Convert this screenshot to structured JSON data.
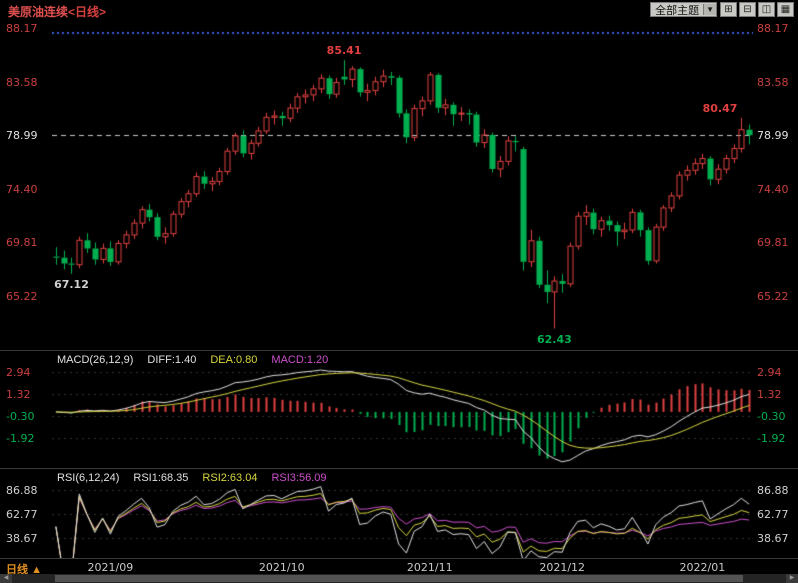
{
  "header": {
    "symbol": "美原油连续",
    "period": "<日线>",
    "theme_dropdown": "全部主题",
    "dropdown_arrow": "▼",
    "layout_buttons": [
      {
        "name": "layout-quad-icon",
        "glyph": "⊞"
      },
      {
        "name": "layout-horizontal-split-icon",
        "glyph": "⊟"
      },
      {
        "name": "layout-vertical-split-icon",
        "glyph": "◫"
      },
      {
        "name": "layout-nine-grid-icon",
        "glyph": "▦"
      }
    ]
  },
  "colors": {
    "background": "#000000",
    "up": "#e04040",
    "down": "#00b050",
    "axis_red": "#c94040",
    "axis_white": "#e0e0e0",
    "neutral_text": "#d0d0d0",
    "yellow": "#d6d640",
    "magenta": "#cc50cc",
    "dotted_blue": "#3c5fd8",
    "last_price_line": "#c8c8c8",
    "grid": "#303030"
  },
  "indicators": {
    "macd": {
      "title": "MACD(26,12,9)",
      "diff_label": "DIFF:1.40",
      "dea_label": "DEA:0.80",
      "macd_label": "MACD:1.20"
    },
    "rsi": {
      "title": "RSI(6,12,24)",
      "rsi1_label": "RSI1:68.35",
      "rsi2_label": "RSI2:63.04",
      "rsi3_label": "RSI3:56.09"
    }
  },
  "bottom": {
    "period_tab": "日线",
    "tab_arrow": "▲",
    "scrollbar": {
      "left_arrow": "◀",
      "right_arrow": "▶"
    }
  },
  "chart_data": {
    "type": "candlestick",
    "title": "美原油连续 <日线>",
    "y_axis": [
      88.17,
      83.58,
      78.99,
      74.4,
      69.81,
      65.22
    ],
    "last_price": 78.99,
    "upper_dotted_level": 87.74,
    "x_ticks": [
      {
        "label": "2021/09",
        "bar": 7
      },
      {
        "label": "2021/10",
        "bar": 29
      },
      {
        "label": "2021/11",
        "bar": 48
      },
      {
        "label": "2021/12",
        "bar": 65
      },
      {
        "label": "2022/01",
        "bar": 83
      }
    ],
    "annotations": [
      {
        "text": "67.12",
        "bar": 2,
        "price": 67.12,
        "placement": "below",
        "color": "neutral"
      },
      {
        "text": "85.41",
        "bar": 37,
        "price": 85.41,
        "placement": "above",
        "color": "up"
      },
      {
        "text": "62.43",
        "bar": 64,
        "price": 62.43,
        "placement": "below",
        "color": "down"
      },
      {
        "text": "80.47",
        "bar": 88,
        "price": 80.47,
        "placement": "above",
        "color": "up"
      }
    ],
    "candles": [
      [
        68.6,
        69.4,
        67.9,
        68.5
      ],
      [
        68.5,
        69.1,
        67.5,
        68.0
      ],
      [
        68.0,
        68.5,
        67.12,
        67.9
      ],
      [
        67.9,
        70.3,
        67.6,
        69.99
      ],
      [
        69.99,
        70.6,
        68.9,
        69.29
      ],
      [
        69.29,
        69.8,
        67.9,
        68.35
      ],
      [
        68.35,
        69.7,
        68.0,
        69.3
      ],
      [
        69.3,
        69.9,
        67.8,
        68.14
      ],
      [
        68.14,
        70.0,
        67.9,
        69.72
      ],
      [
        69.72,
        70.8,
        69.3,
        70.45
      ],
      [
        70.45,
        71.8,
        70.1,
        71.46
      ],
      [
        71.46,
        72.9,
        71.0,
        72.61
      ],
      [
        72.61,
        73.1,
        71.6,
        71.97
      ],
      [
        71.97,
        72.3,
        70.0,
        70.29
      ],
      [
        70.29,
        71.1,
        69.7,
        70.56
      ],
      [
        70.56,
        72.5,
        70.3,
        72.23
      ],
      [
        72.23,
        73.6,
        71.9,
        73.3
      ],
      [
        73.3,
        74.3,
        72.8,
        73.98
      ],
      [
        73.98,
        75.8,
        73.7,
        75.45
      ],
      [
        75.45,
        75.9,
        74.4,
        74.83
      ],
      [
        74.83,
        75.4,
        74.2,
        75.03
      ],
      [
        75.03,
        76.2,
        74.7,
        75.88
      ],
      [
        75.88,
        77.9,
        75.6,
        77.62
      ],
      [
        77.62,
        79.2,
        77.3,
        78.93
      ],
      [
        78.93,
        79.4,
        77.1,
        77.43
      ],
      [
        77.43,
        78.6,
        76.9,
        78.3
      ],
      [
        78.3,
        79.7,
        78.0,
        79.35
      ],
      [
        79.35,
        80.9,
        79.1,
        80.52
      ],
      [
        80.52,
        81.1,
        79.9,
        80.64
      ],
      [
        80.64,
        81.0,
        79.8,
        80.44
      ],
      [
        80.44,
        81.7,
        80.1,
        81.31
      ],
      [
        81.31,
        82.6,
        80.9,
        82.28
      ],
      [
        82.28,
        82.9,
        81.7,
        82.44
      ],
      [
        82.44,
        83.3,
        81.9,
        82.96
      ],
      [
        82.96,
        84.2,
        82.6,
        83.87
      ],
      [
        83.87,
        84.1,
        82.1,
        82.5
      ],
      [
        82.5,
        83.9,
        82.2,
        83.5
      ],
      [
        84.0,
        85.41,
        83.3,
        83.76
      ],
      [
        83.76,
        84.9,
        83.1,
        84.65
      ],
      [
        84.65,
        84.8,
        82.3,
        82.66
      ],
      [
        82.66,
        83.4,
        81.9,
        82.81
      ],
      [
        82.81,
        84.0,
        82.4,
        83.57
      ],
      [
        83.57,
        84.6,
        83.1,
        84.05
      ],
      [
        84.05,
        84.4,
        83.3,
        83.91
      ],
      [
        83.91,
        84.1,
        80.5,
        80.86
      ],
      [
        80.86,
        81.2,
        78.3,
        78.81
      ],
      [
        78.81,
        81.6,
        78.5,
        81.27
      ],
      [
        81.27,
        82.3,
        80.6,
        81.93
      ],
      [
        81.93,
        84.4,
        81.6,
        84.15
      ],
      [
        84.15,
        84.3,
        80.9,
        81.34
      ],
      [
        81.34,
        82.1,
        80.7,
        81.59
      ],
      [
        81.59,
        81.8,
        79.8,
        80.79
      ],
      [
        80.79,
        81.4,
        80.2,
        80.88
      ],
      [
        80.88,
        81.2,
        79.9,
        80.76
      ],
      [
        80.76,
        81.0,
        78.0,
        78.36
      ],
      [
        78.36,
        79.5,
        77.9,
        79.01
      ],
      [
        79.01,
        79.2,
        75.8,
        76.1
      ],
      [
        76.1,
        77.2,
        75.4,
        76.75
      ],
      [
        76.75,
        78.9,
        76.4,
        78.5
      ],
      [
        78.5,
        78.9,
        77.6,
        78.39
      ],
      [
        77.8,
        78.0,
        67.4,
        68.15
      ],
      [
        68.15,
        70.9,
        67.7,
        69.95
      ],
      [
        69.95,
        70.3,
        65.9,
        66.18
      ],
      [
        66.18,
        67.4,
        64.6,
        65.57
      ],
      [
        65.57,
        66.9,
        62.43,
        66.5
      ],
      [
        66.5,
        67.1,
        65.5,
        66.26
      ],
      [
        66.26,
        69.8,
        66.0,
        69.49
      ],
      [
        69.49,
        72.4,
        69.2,
        72.05
      ],
      [
        72.05,
        73.0,
        71.3,
        72.36
      ],
      [
        72.36,
        72.7,
        70.5,
        70.94
      ],
      [
        70.94,
        72.0,
        70.3,
        71.67
      ],
      [
        71.67,
        72.1,
        70.8,
        71.29
      ],
      [
        71.29,
        71.6,
        69.5,
        70.73
      ],
      [
        70.73,
        71.5,
        70.1,
        70.87
      ],
      [
        70.87,
        72.7,
        70.6,
        72.38
      ],
      [
        72.38,
        72.6,
        70.3,
        70.86
      ],
      [
        70.86,
        71.1,
        67.9,
        68.23
      ],
      [
        68.23,
        71.4,
        68.0,
        71.12
      ],
      [
        71.12,
        73.0,
        70.8,
        72.76
      ],
      [
        72.76,
        74.1,
        72.4,
        73.79
      ],
      [
        73.79,
        75.9,
        73.5,
        75.57
      ],
      [
        75.57,
        76.4,
        75.1,
        75.98
      ],
      [
        75.98,
        77.0,
        75.6,
        76.56
      ],
      [
        76.56,
        77.4,
        76.1,
        76.99
      ],
      [
        76.99,
        77.2,
        74.7,
        75.21
      ],
      [
        75.21,
        76.5,
        74.8,
        76.08
      ],
      [
        76.08,
        77.3,
        75.7,
        76.99
      ],
      [
        76.99,
        78.2,
        76.6,
        77.85
      ],
      [
        77.85,
        80.47,
        77.5,
        79.46
      ],
      [
        79.46,
        79.9,
        78.2,
        78.99
      ]
    ],
    "macd": {
      "params": [
        26,
        12,
        9
      ],
      "diff": 1.4,
      "dea": 0.8,
      "macd": 1.2,
      "axis": [
        2.94,
        1.32,
        -0.3,
        -1.92
      ]
    },
    "rsi": {
      "params": [
        6,
        12,
        24
      ],
      "rsi1": 68.35,
      "rsi2": 63.04,
      "rsi3": 56.09,
      "axis": [
        86.88,
        62.77,
        38.67
      ]
    }
  }
}
